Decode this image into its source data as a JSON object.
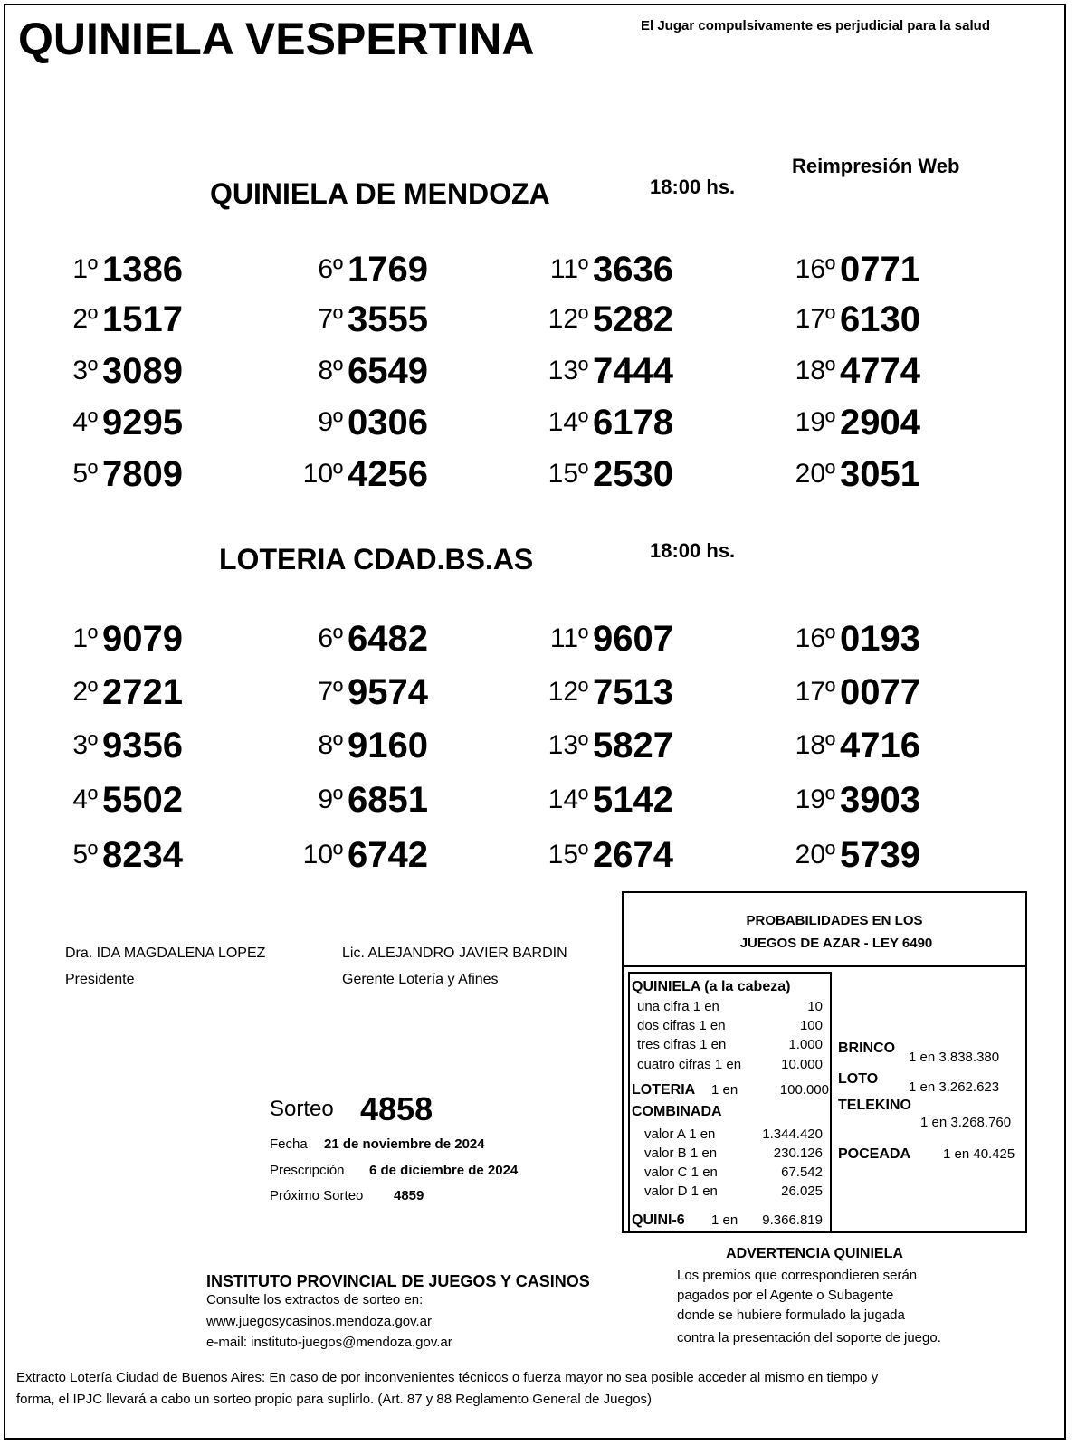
{
  "header": {
    "title": "QUINIELA VESPERTINA",
    "warning": "El Jugar compulsivamente es perjudicial para la salud",
    "reprint": "Reimpresión Web"
  },
  "sections": [
    {
      "title": "QUINIELA  DE MENDOZA",
      "time": "18:00 hs.",
      "results": [
        {
          "pos": "1º",
          "number": "1386"
        },
        {
          "pos": "2º",
          "number": "1517"
        },
        {
          "pos": "3º",
          "number": "3089"
        },
        {
          "pos": "4º",
          "number": "9295"
        },
        {
          "pos": "5º",
          "number": "7809"
        },
        {
          "pos": "6º",
          "number": "1769"
        },
        {
          "pos": "7º",
          "number": "3555"
        },
        {
          "pos": "8º",
          "number": "6549"
        },
        {
          "pos": "9º",
          "number": "0306"
        },
        {
          "pos": "10º",
          "number": "4256"
        },
        {
          "pos": "11º",
          "number": "3636"
        },
        {
          "pos": "12º",
          "number": "5282"
        },
        {
          "pos": "13º",
          "number": "7444"
        },
        {
          "pos": "14º",
          "number": "6178"
        },
        {
          "pos": "15º",
          "number": "2530"
        },
        {
          "pos": "16º",
          "number": "0771"
        },
        {
          "pos": "17º",
          "number": "6130"
        },
        {
          "pos": "18º",
          "number": "4774"
        },
        {
          "pos": "19º",
          "number": "2904"
        },
        {
          "pos": "20º",
          "number": "3051"
        }
      ]
    },
    {
      "title": "LOTERIA CDAD.BS.AS",
      "time": "18:00 hs.",
      "results": [
        {
          "pos": "1º",
          "number": "9079"
        },
        {
          "pos": "2º",
          "number": "2721"
        },
        {
          "pos": "3º",
          "number": "9356"
        },
        {
          "pos": "4º",
          "number": "5502"
        },
        {
          "pos": "5º",
          "number": "8234"
        },
        {
          "pos": "6º",
          "number": "6482"
        },
        {
          "pos": "7º",
          "number": "9574"
        },
        {
          "pos": "8º",
          "number": "9160"
        },
        {
          "pos": "9º",
          "number": "6851"
        },
        {
          "pos": "10º",
          "number": "6742"
        },
        {
          "pos": "11º",
          "number": "9607"
        },
        {
          "pos": "12º",
          "number": "7513"
        },
        {
          "pos": "13º",
          "number": "5827"
        },
        {
          "pos": "14º",
          "number": "5142"
        },
        {
          "pos": "15º",
          "number": "2674"
        },
        {
          "pos": "16º",
          "number": "0193"
        },
        {
          "pos": "17º",
          "number": "0077"
        },
        {
          "pos": "18º",
          "number": "4716"
        },
        {
          "pos": "19º",
          "number": "3903"
        },
        {
          "pos": "20º",
          "number": "5739"
        }
      ]
    }
  ],
  "signatures": [
    {
      "name": "Dra. IDA MAGDALENA LOPEZ",
      "role": "Presidente"
    },
    {
      "name": "Lic. ALEJANDRO JAVIER BARDIN",
      "role": "Gerente Lotería y Afines"
    }
  ],
  "draw": {
    "label": "Sorteo",
    "number": "4858",
    "fields": [
      {
        "label": "Fecha",
        "value": "21 de noviembre de 2024"
      },
      {
        "label": "Prescripción",
        "value": "6 de diciembre de 2024"
      },
      {
        "label": "Próximo Sorteo",
        "value": "4859"
      }
    ]
  },
  "probabilities": {
    "title": [
      "PROBABILIDADES EN LOS",
      "JUEGOS DE AZAR - LEY 6490"
    ],
    "quiniela": {
      "heading": "QUINIELA (a la cabeza)",
      "rows": [
        {
          "label": "una cifra  1 en",
          "value": "10"
        },
        {
          "label": "dos cifras 1 en",
          "value": "100"
        },
        {
          "label": "tres cifras 1 en",
          "value": "1.000"
        },
        {
          "label": "cuatro cifras 1 en",
          "value": "10.000"
        }
      ]
    },
    "loteria": {
      "label": "LOTERIA",
      "odds": "1 en",
      "value": "100.000"
    },
    "combinada": {
      "heading": "COMBINADA",
      "rows": [
        {
          "label": "valor A 1 en",
          "value": "1.344.420"
        },
        {
          "label": "valor B 1 en",
          "value": "230.126"
        },
        {
          "label": "valor C 1 en",
          "value": "67.542"
        },
        {
          "label": "valor D 1 en",
          "value": "26.025"
        }
      ]
    },
    "quini6": {
      "label": "QUINI-6",
      "odds": "1 en",
      "value": "9.366.819"
    },
    "others": [
      {
        "label": "BRINCO",
        "odds": "1 en 3.838.380"
      },
      {
        "label": "LOTO",
        "odds": "1 en 3.262.623"
      },
      {
        "label": "TELEKINO",
        "odds": "1 en 3.268.760"
      },
      {
        "label": "POCEADA",
        "odds": "1 en 40.425"
      }
    ]
  },
  "institute": {
    "title": "INSTITUTO PROVINCIAL DE JUEGOS Y CASINOS",
    "lines": [
      "Consulte los extractos de sorteo en:",
      "www.juegosycasinos.mendoza.gov.ar",
      "e-mail:  instituto-juegos@mendoza.gov.ar"
    ]
  },
  "advertencia": {
    "title": "ADVERTENCIA QUINIELA",
    "lines": [
      "Los premios que correspondieren serán",
      "pagados por el Agente o Subagente",
      "donde se hubiere formulado la jugada",
      "contra la presentación del soporte de juego."
    ]
  },
  "disclaimer": [
    "Extracto Lotería Ciudad de Buenos Aires: En caso de por inconvenientes técnicos o fuerza mayor no sea posible acceder al mismo en tiempo y",
    "forma, el IPJC llevará a cabo un sorteo propio para suplirlo. (Art. 87 y 88 Reglamento General de Juegos)"
  ]
}
